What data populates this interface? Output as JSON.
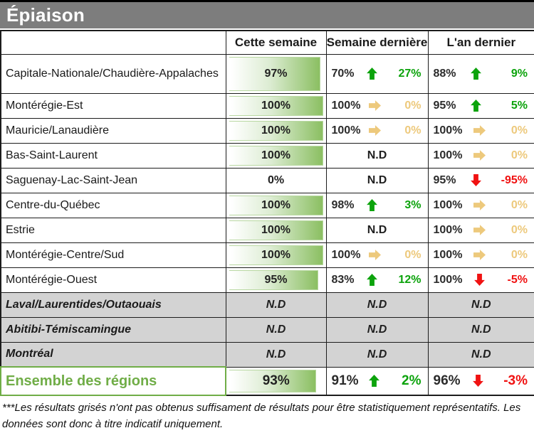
{
  "colors": {
    "titlebar_bg": "#7d7d7d",
    "bar_green": "#8bbf62",
    "grayed_row_bg": "#d3d3d3",
    "total_green": "#70ad47",
    "trend": {
      "up": "#0ca30c",
      "flat": "#edc97c",
      "down": "#f01212"
    }
  },
  "footnote": "***Les résultats grisés n'ont pas obtenus suffisament de résultats pour être statistiquement représentatifs. Les données sont donc à titre indicatif uniquement.",
  "chart_data": {
    "type": "table",
    "title": "Épiaison",
    "columns": [
      "Cette semaine",
      "Semaine dernière",
      "L'an dernier"
    ],
    "nd_label": "N.D",
    "rows": [
      {
        "name": "Capitale-Nationale/Chaudière-Appalaches",
        "grayed": false,
        "total": false,
        "this_week": {
          "value": "97%",
          "bar": 97
        },
        "last_week": {
          "value": "70%",
          "trend": "up",
          "change": "27%"
        },
        "last_year": {
          "value": "88%",
          "trend": "up",
          "change": "9%"
        }
      },
      {
        "name": "Montérégie-Est",
        "grayed": false,
        "total": false,
        "this_week": {
          "value": "100%",
          "bar": 100
        },
        "last_week": {
          "value": "100%",
          "trend": "flat",
          "change": "0%"
        },
        "last_year": {
          "value": "95%",
          "trend": "up",
          "change": "5%"
        }
      },
      {
        "name": "Mauricie/Lanaudière",
        "grayed": false,
        "total": false,
        "this_week": {
          "value": "100%",
          "bar": 100
        },
        "last_week": {
          "value": "100%",
          "trend": "flat",
          "change": "0%"
        },
        "last_year": {
          "value": "100%",
          "trend": "flat",
          "change": "0%"
        }
      },
      {
        "name": "Bas-Saint-Laurent",
        "grayed": false,
        "total": false,
        "this_week": {
          "value": "100%",
          "bar": 100
        },
        "last_week": {
          "nd": true
        },
        "last_year": {
          "value": "100%",
          "trend": "flat",
          "change": "0%"
        }
      },
      {
        "name": "Saguenay-Lac-Saint-Jean",
        "grayed": false,
        "total": false,
        "this_week": {
          "value": "0%",
          "bar": 0
        },
        "last_week": {
          "nd": true
        },
        "last_year": {
          "value": "95%",
          "trend": "down",
          "change": "-95%"
        }
      },
      {
        "name": "Centre-du-Québec",
        "grayed": false,
        "total": false,
        "this_week": {
          "value": "100%",
          "bar": 100
        },
        "last_week": {
          "value": "98%",
          "trend": "up",
          "change": "3%"
        },
        "last_year": {
          "value": "100%",
          "trend": "flat",
          "change": "0%"
        }
      },
      {
        "name": "Estrie",
        "grayed": false,
        "total": false,
        "this_week": {
          "value": "100%",
          "bar": 100
        },
        "last_week": {
          "nd": true
        },
        "last_year": {
          "value": "100%",
          "trend": "flat",
          "change": "0%"
        }
      },
      {
        "name": "Montérégie-Centre/Sud",
        "grayed": false,
        "total": false,
        "this_week": {
          "value": "100%",
          "bar": 100
        },
        "last_week": {
          "value": "100%",
          "trend": "flat",
          "change": "0%"
        },
        "last_year": {
          "value": "100%",
          "trend": "flat",
          "change": "0%"
        }
      },
      {
        "name": "Montérégie-Ouest",
        "grayed": false,
        "total": false,
        "this_week": {
          "value": "95%",
          "bar": 95
        },
        "last_week": {
          "value": "83%",
          "trend": "up",
          "change": "12%"
        },
        "last_year": {
          "value": "100%",
          "trend": "down",
          "change": "-5%"
        }
      },
      {
        "name": "Laval/Laurentides/Outaouais",
        "grayed": true,
        "total": false,
        "this_week": {
          "nd": true
        },
        "last_week": {
          "nd": true
        },
        "last_year": {
          "nd": true
        }
      },
      {
        "name": "Abitibi-Témiscamingue",
        "grayed": true,
        "total": false,
        "this_week": {
          "nd": true
        },
        "last_week": {
          "nd": true
        },
        "last_year": {
          "nd": true
        }
      },
      {
        "name": "Montréal",
        "grayed": true,
        "total": false,
        "this_week": {
          "nd": true
        },
        "last_week": {
          "nd": true
        },
        "last_year": {
          "nd": true
        }
      },
      {
        "name": "Ensemble des régions",
        "grayed": false,
        "total": true,
        "this_week": {
          "value": "93%",
          "bar": 93
        },
        "last_week": {
          "value": "91%",
          "trend": "up",
          "change": "2%"
        },
        "last_year": {
          "value": "96%",
          "trend": "down",
          "change": "-3%"
        }
      }
    ]
  }
}
